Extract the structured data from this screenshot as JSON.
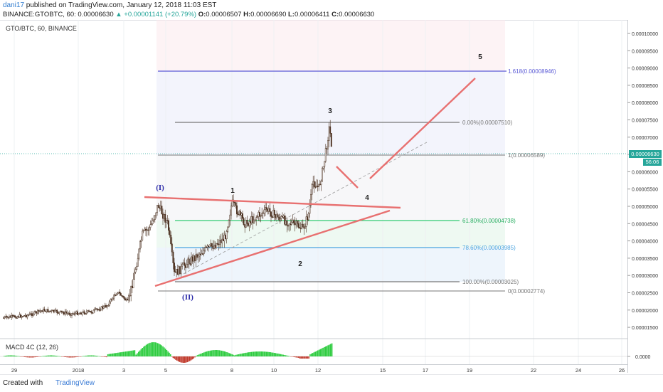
{
  "header": {
    "user": "dani17",
    "published": " published on TradingView.com, January 12, 2018 11:03 EST",
    "symbol": "BINANCE:GTOBTC, 60",
    "last": "0.00006630",
    "change": "▲ +0.00001141 (+20.79%)",
    "o_label": "O:",
    "o": "0.00006507",
    "h_label": "H:",
    "h": "0.00006690",
    "l_label": "L:",
    "l": "0.00006411",
    "c_label": "C:",
    "c": "0.00006630"
  },
  "chart": {
    "ticker_label": "GTO/BTC, 60, BINANCE",
    "macd_label": "MACD 4C (12, 26)",
    "price_badge": "0.00006630",
    "time_badge": "56:06",
    "price_ticks": [
      "0.00010000",
      "0.00009500",
      "0.00009000",
      "0.00008500",
      "0.00008000",
      "0.00007500",
      "0.00007000",
      "0.00006500",
      "0.00006000",
      "0.00005500",
      "0.00005000",
      "0.00004500",
      "0.00004000",
      "0.00003500",
      "0.00003000",
      "0.00002500",
      "0.00002000",
      "0.00001500"
    ],
    "macd_tick": "0.0000",
    "time_ticks": [
      "29",
      "2018",
      "3",
      "5",
      "8",
      "10",
      "12",
      "15",
      "17",
      "19",
      "22",
      "24",
      "26"
    ],
    "fib_labels": {
      "f1618": "1.618(0.00008946)",
      "f0": "0.00%(0.00007510)",
      "f1": "1(0.00006589)",
      "f618": "61.80%(0.00004738)",
      "f786": "78.60%(0.00003985)",
      "f100": "100.00%(0.00003025)",
      "fzero": "0(0.00002774)"
    },
    "wave_labels": {
      "w1": "1",
      "w2": "2",
      "w3": "3",
      "w4": "4",
      "w5": "5",
      "wI": "(I)",
      "wII": "(II)"
    },
    "colors": {
      "up": "#26a69a",
      "down": "#ef5350",
      "candle": "#4a2f1e",
      "trend": "#e87070",
      "fib_blue": "#5b5bd6",
      "fib_green": "#2ecc71",
      "fib_lightblue": "#4aa3df",
      "fib_gray": "#777777",
      "macd_green": "#2ecc40",
      "macd_red": "#c0392b"
    }
  },
  "footer": {
    "created": "Created with",
    "brand": "TradingView"
  }
}
